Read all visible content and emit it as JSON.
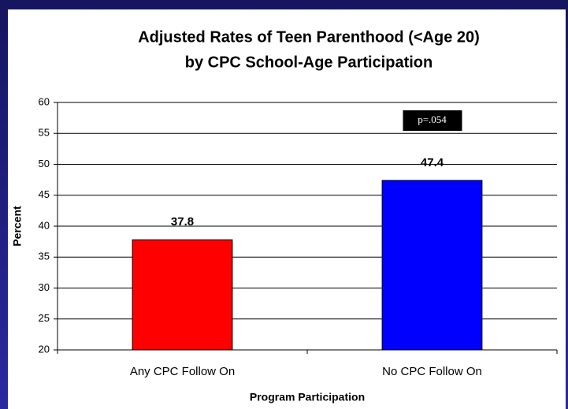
{
  "chart_data": {
    "type": "bar",
    "title": [
      "Adjusted Rates of Teen Parenthood (<Age 20)",
      "by CPC School-Age Participation"
    ],
    "xlabel": "Program Participation",
    "ylabel": "Percent",
    "categories": [
      "Any CPC Follow On",
      "No CPC Follow On"
    ],
    "values": [
      37.8,
      47.4
    ],
    "colors": [
      "#ff0000",
      "#0000ff"
    ],
    "annotations": [
      "p=.054"
    ],
    "ylim": [
      20,
      60
    ],
    "yticks": [
      20,
      25,
      30,
      35,
      40,
      45,
      50,
      55,
      60
    ],
    "grid": true
  }
}
